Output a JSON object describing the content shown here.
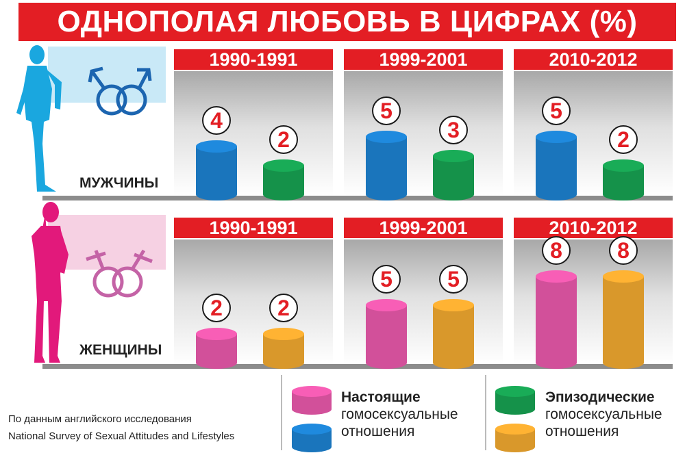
{
  "title": "ОДНОПОЛАЯ ЛЮБОВЬ В ЦИФРАХ (%)",
  "rows": [
    {
      "label": "МУЖЧИНЫ",
      "tint": "#c9e9f7"
    },
    {
      "label": "ЖЕНЩИНЫ",
      "tint": "#f6d1e3"
    }
  ],
  "periods": [
    "1990-1991",
    "1999-2001",
    "2010-2012"
  ],
  "chart_data": {
    "type": "bar",
    "title": "ОДНОПОЛАЯ ЛЮБОВЬ В ЦИФРАХ (%)",
    "categories": [
      "1990-1991",
      "1999-2001",
      "2010-2012"
    ],
    "panels": [
      {
        "group": "МУЖЧИНЫ",
        "series": [
          {
            "name": "Настоящие гомосексуальные отношения",
            "color": "#1a75bc",
            "values": [
              4,
              5,
              5
            ]
          },
          {
            "name": "Эпизодические гомосексуальные отношения",
            "color": "#15924a",
            "values": [
              2,
              3,
              2
            ]
          }
        ]
      },
      {
        "group": "ЖЕНЩИНЫ",
        "series": [
          {
            "name": "Настоящие гомосексуальные отношения",
            "color": "#d2509a",
            "values": [
              2,
              5,
              8
            ]
          },
          {
            "name": "Эпизодические гомосексуальные отношения",
            "color": "#d9982b",
            "values": [
              2,
              5,
              8
            ]
          }
        ]
      }
    ]
  },
  "legend": [
    {
      "bold": "Настоящие",
      "text1": "гомосексуальные",
      "text2": "отношения",
      "colors": [
        "#d2509a",
        "#1a75bc"
      ]
    },
    {
      "bold": "Эпизодические",
      "text1": "гомосексуальные",
      "text2": "отношения",
      "colors": [
        "#15924a",
        "#d9982b"
      ]
    }
  ],
  "source": {
    "line1": "По данным английского исследования",
    "line2": "National Survey of Sexual Attitudes and Lifestyles"
  },
  "icons": [
    "male-silhouette-icon",
    "male-symbols-icon",
    "female-silhouette-icon",
    "female-symbols-icon"
  ]
}
